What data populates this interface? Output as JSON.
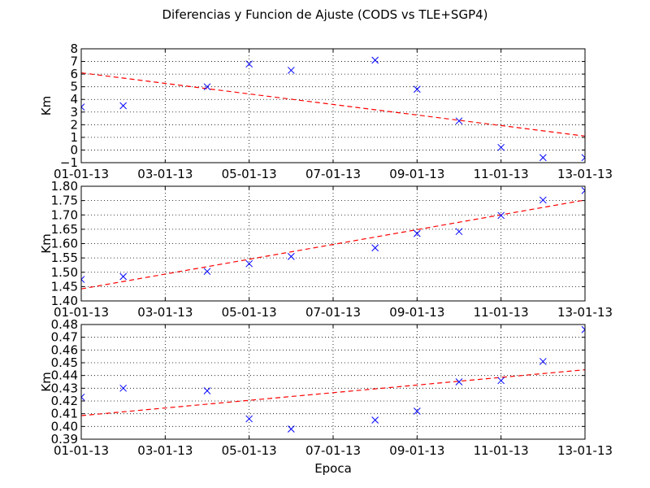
{
  "figure": {
    "title": "Diferencias y Funcion de Ajuste (CODS vs TLE+SGP4)",
    "xlabel": "Epoca"
  },
  "colors": {
    "marker": "#0000ff",
    "fit_line": "#ff0000",
    "grid": "#000000",
    "background": "#ffffff"
  },
  "chart_data": [
    {
      "type": "scatter",
      "ylabel": "Km",
      "xlabel": "",
      "x_ticks": [
        "01-01-13",
        "03-01-13",
        "05-01-13",
        "07-01-13",
        "09-01-13",
        "11-01-13",
        "13-01-13"
      ],
      "xlim": [
        "01-01-13",
        "13-01-13"
      ],
      "ylim": [
        -1,
        8
      ],
      "y_ticks": [
        "−1",
        "0",
        "1",
        "2",
        "3",
        "4",
        "5",
        "6",
        "7",
        "8"
      ],
      "grid": true,
      "series": [
        {
          "marker": "x",
          "x": [
            "01-01-13",
            "02-01-13",
            "04-01-13",
            "05-01-13",
            "06-01-13",
            "08-01-13",
            "09-01-13",
            "10-01-13",
            "11-01-13",
            "12-01-13",
            "13-01-13"
          ],
          "y": [
            3.4,
            3.5,
            5.0,
            6.8,
            6.3,
            7.1,
            4.8,
            2.3,
            0.2,
            -0.6,
            -0.6
          ]
        },
        {
          "style": "dashed-line",
          "x": [
            "01-01-13",
            "13-01-13"
          ],
          "y": [
            6.1,
            1.1
          ]
        }
      ]
    },
    {
      "type": "scatter",
      "ylabel": "Km",
      "xlabel": "",
      "x_ticks": [
        "01-01-13",
        "03-01-13",
        "05-01-13",
        "07-01-13",
        "09-01-13",
        "11-01-13",
        "13-01-13"
      ],
      "xlim": [
        "01-01-13",
        "13-01-13"
      ],
      "ylim": [
        1.4,
        1.8
      ],
      "y_ticks": [
        "1.40",
        "1.45",
        "1.50",
        "1.55",
        "1.60",
        "1.65",
        "1.70",
        "1.75",
        "1.80"
      ],
      "grid": true,
      "series": [
        {
          "marker": "x",
          "x": [
            "01-01-13",
            "02-01-13",
            "04-01-13",
            "05-01-13",
            "06-01-13",
            "08-01-13",
            "09-01-13",
            "10-01-13",
            "11-01-13",
            "12-01-13",
            "13-01-13"
          ],
          "y": [
            1.475,
            1.485,
            1.503,
            1.53,
            1.555,
            1.585,
            1.635,
            1.642,
            1.698,
            1.752,
            1.785
          ]
        },
        {
          "style": "dashed-line",
          "x": [
            "01-01-13",
            "13-01-13"
          ],
          "y": [
            1.442,
            1.752
          ]
        }
      ]
    },
    {
      "type": "scatter",
      "ylabel": "Km",
      "xlabel": "Epoca",
      "x_ticks": [
        "01-01-13",
        "03-01-13",
        "05-01-13",
        "07-01-13",
        "09-01-13",
        "11-01-13",
        "13-01-13"
      ],
      "xlim": [
        "01-01-13",
        "13-01-13"
      ],
      "ylim": [
        0.39,
        0.48
      ],
      "y_ticks": [
        "0.39",
        "0.40",
        "0.41",
        "0.42",
        "0.43",
        "0.44",
        "0.45",
        "0.46",
        "0.47",
        "0.48"
      ],
      "grid": true,
      "series": [
        {
          "marker": "x",
          "x": [
            "01-01-13",
            "02-01-13",
            "04-01-13",
            "05-01-13",
            "06-01-13",
            "08-01-13",
            "09-01-13",
            "10-01-13",
            "11-01-13",
            "12-01-13",
            "13-01-13"
          ],
          "y": [
            0.423,
            0.43,
            0.428,
            0.406,
            0.398,
            0.405,
            0.412,
            0.435,
            0.436,
            0.451,
            0.476
          ]
        },
        {
          "style": "dashed-line",
          "x": [
            "01-01-13",
            "13-01-13"
          ],
          "y": [
            0.4085,
            0.4445
          ]
        }
      ]
    }
  ]
}
